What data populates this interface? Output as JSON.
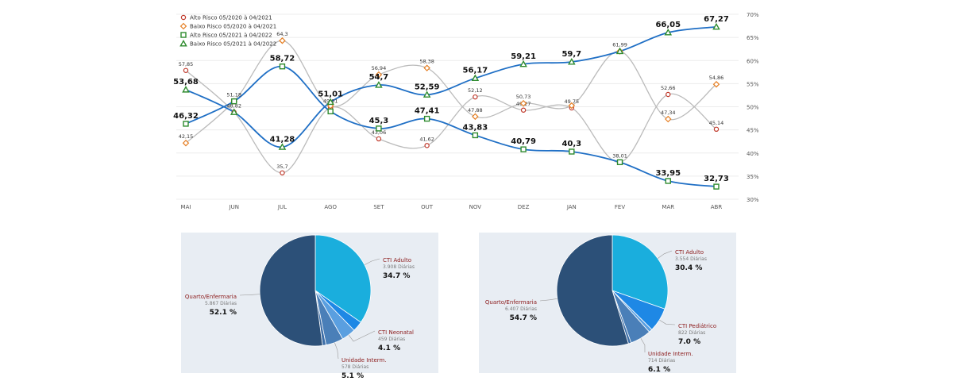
{
  "chart_data": [
    {
      "type": "line",
      "categories": [
        "MAI",
        "JUN",
        "JUL",
        "AGO",
        "SET",
        "OUT",
        "NOV",
        "DEZ",
        "JAN",
        "FEV",
        "MAR",
        "ABR"
      ],
      "y_axis": {
        "min": 30,
        "max": 70,
        "ticks": [
          "30%",
          "35%",
          "40%",
          "45%",
          "50%",
          "55%",
          "60%",
          "65%",
          "70%"
        ],
        "position": "right"
      },
      "legend_position": "top-left",
      "series": [
        {
          "name": "Alto Risco 05/2020 à 04/2021",
          "color": "#bbbbbb",
          "marker": "circle",
          "marker_color": "#c0392b",
          "bold_labels": false,
          "values": [
            57.85,
            48.82,
            35.7,
            49.81,
            43.06,
            41.62,
            52.12,
            49.27,
            49.75,
            38.01,
            52.66,
            45.14
          ],
          "labels": [
            "57,85",
            "48,82",
            "35,7",
            "49,81",
            "43,06",
            "41,62",
            "52,12",
            "49,27",
            "49,75",
            "38,01",
            "52,66",
            "45,14"
          ]
        },
        {
          "name": "Baixo Risco 05/2020 à 04/2021",
          "color": "#bbbbbb",
          "marker": "diamond",
          "marker_color": "#e67e22",
          "bold_labels": false,
          "values": [
            42.15,
            51.18,
            64.3,
            50.19,
            56.94,
            58.38,
            47.88,
            50.73,
            50.25,
            61.99,
            47.34,
            54.86
          ],
          "labels": [
            "42,15",
            "51,18",
            "64,3",
            "",
            "56,94",
            "58,38",
            "47,88",
            "50,73",
            "",
            "61,99",
            "47,34",
            "54,86"
          ]
        },
        {
          "name": "Alto Risco 05/2021 à 04/2022",
          "color": "#1f6fc5",
          "marker": "square",
          "marker_color": "#2e8b2e",
          "bold_labels": true,
          "values": [
            46.32,
            51.18,
            58.72,
            49.0,
            45.3,
            47.41,
            43.83,
            40.79,
            40.3,
            38.01,
            33.95,
            32.73
          ],
          "labels": [
            "46,32",
            "",
            "58,72",
            "",
            "45,3",
            "47,41",
            "43,83",
            "40,79",
            "40,3",
            "",
            "33,95",
            "32,73"
          ]
        },
        {
          "name": "Baixo Risco 05/2021 à 04/2022",
          "color": "#1f6fc5",
          "marker": "triangle",
          "marker_color": "#2e8b2e",
          "bold_labels": true,
          "values": [
            53.68,
            48.82,
            41.28,
            51.01,
            54.7,
            52.59,
            56.17,
            59.21,
            59.7,
            61.99,
            66.05,
            67.27
          ],
          "labels": [
            "53,68",
            "",
            "41,28",
            "51,01",
            "54,7",
            "52,59",
            "56,17",
            "59,21",
            "59,7",
            "",
            "66,05",
            "67,27"
          ]
        }
      ]
    },
    {
      "type": "pie",
      "slices": [
        {
          "name": "CTI Adulto",
          "sub": "3.908 Diárias",
          "percent": 34.7,
          "pct_label": "34.7 %",
          "color": "#1aaedd",
          "label": true
        },
        {
          "name": "",
          "percent": 3.0,
          "color": "#1e88e5",
          "label": false
        },
        {
          "name": "CTI Neonatal",
          "sub": "459 Diárias",
          "percent": 4.1,
          "pct_label": "4.1 %",
          "color": "#5a9fe0",
          "label": true
        },
        {
          "name": "Unidade Interm.",
          "sub": "578 Diárias",
          "percent": 5.1,
          "pct_label": "5.1 %",
          "color": "#4a7fb8",
          "label": true
        },
        {
          "name": "",
          "percent": 1.0,
          "color": "#3c6da6",
          "label": false
        },
        {
          "name": "Quarto/Enfermaria",
          "sub": "5.867 Diárias",
          "percent": 52.1,
          "pct_label": "52.1 %",
          "color": "#2c5078",
          "label": true
        }
      ]
    },
    {
      "type": "pie",
      "slices": [
        {
          "name": "CTI Adulto",
          "sub": "3.554 Diárias",
          "percent": 30.4,
          "pct_label": "30.4 %",
          "color": "#1aaedd",
          "label": true
        },
        {
          "name": "CTI Pediátrico",
          "sub": "822 Diárias",
          "percent": 7.0,
          "pct_label": "7.0 %",
          "color": "#1e88e5",
          "label": true
        },
        {
          "name": "",
          "percent": 1.0,
          "color": "#5a9fe0",
          "label": false
        },
        {
          "name": "Unidade Interm.",
          "sub": "714 Diárias",
          "percent": 6.1,
          "pct_label": "6.1 %",
          "color": "#4a7fb8",
          "label": true
        },
        {
          "name": "",
          "percent": 0.8,
          "color": "#3c6da6",
          "label": false
        },
        {
          "name": "Quarto/Enfermaria",
          "sub": "6.407 Diárias",
          "percent": 54.7,
          "pct_label": "54.7 %",
          "color": "#2c5078",
          "label": true
        }
      ]
    }
  ]
}
